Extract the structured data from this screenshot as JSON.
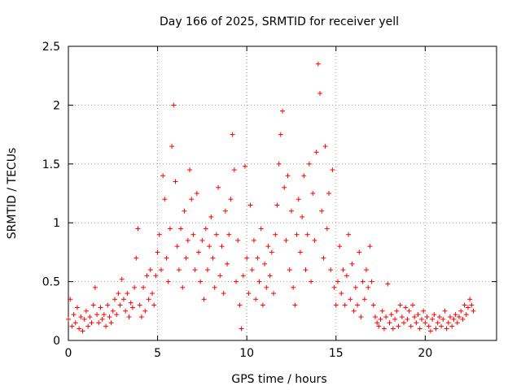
{
  "chart_data": {
    "type": "scatter",
    "title": "Day 166 of 2025, SRMTID for receiver yell",
    "xlabel": "GPS time / hours",
    "ylabel": "SRMTID / TECUs",
    "xlim": [
      0,
      24
    ],
    "ylim": [
      0,
      2.5
    ],
    "xticks": [
      0,
      5,
      10,
      15,
      20
    ],
    "yticks": [
      0,
      0.5,
      1,
      1.5,
      2,
      2.5
    ],
    "ytick_labels": [
      "0",
      "0.5",
      "1",
      "1.5",
      "2",
      "2.5"
    ],
    "grid": true,
    "marker": "+",
    "color": "#ff0000",
    "series": [
      {
        "name": "SRMTID",
        "points": [
          [
            0.0,
            0.18
          ],
          [
            0.1,
            0.35
          ],
          [
            0.2,
            0.12
          ],
          [
            0.3,
            0.22
          ],
          [
            0.4,
            0.15
          ],
          [
            0.5,
            0.28
          ],
          [
            0.6,
            0.1
          ],
          [
            0.7,
            0.2
          ],
          [
            0.8,
            0.08
          ],
          [
            0.9,
            0.18
          ],
          [
            1.0,
            0.25
          ],
          [
            1.1,
            0.12
          ],
          [
            1.2,
            0.2
          ],
          [
            1.3,
            0.15
          ],
          [
            1.4,
            0.3
          ],
          [
            1.5,
            0.45
          ],
          [
            1.6,
            0.22
          ],
          [
            1.7,
            0.15
          ],
          [
            1.8,
            0.28
          ],
          [
            1.9,
            0.18
          ],
          [
            2.0,
            0.22
          ],
          [
            2.1,
            0.12
          ],
          [
            2.2,
            0.3
          ],
          [
            2.3,
            0.2
          ],
          [
            2.4,
            0.15
          ],
          [
            2.5,
            0.25
          ],
          [
            2.6,
            0.35
          ],
          [
            2.7,
            0.22
          ],
          [
            2.8,
            0.4
          ],
          [
            2.9,
            0.3
          ],
          [
            3.0,
            0.52
          ],
          [
            3.1,
            0.35
          ],
          [
            3.2,
            0.25
          ],
          [
            3.3,
            0.4
          ],
          [
            3.4,
            0.2
          ],
          [
            3.5,
            0.32
          ],
          [
            3.6,
            0.28
          ],
          [
            3.7,
            0.45
          ],
          [
            3.8,
            0.7
          ],
          [
            3.9,
            0.95
          ],
          [
            4.0,
            0.3
          ],
          [
            4.1,
            0.2
          ],
          [
            4.2,
            0.45
          ],
          [
            4.3,
            0.25
          ],
          [
            4.4,
            0.55
          ],
          [
            4.5,
            0.35
          ],
          [
            4.6,
            0.6
          ],
          [
            4.7,
            0.4
          ],
          [
            4.8,
            0.3
          ],
          [
            4.9,
            0.55
          ],
          [
            5.0,
            0.75
          ],
          [
            5.1,
            0.9
          ],
          [
            5.2,
            0.6
          ],
          [
            5.3,
            1.4
          ],
          [
            5.4,
            1.2
          ],
          [
            5.5,
            0.7
          ],
          [
            5.6,
            0.5
          ],
          [
            5.7,
            0.95
          ],
          [
            5.8,
            1.65
          ],
          [
            5.9,
            2.0
          ],
          [
            6.0,
            1.35
          ],
          [
            6.1,
            0.8
          ],
          [
            6.2,
            0.6
          ],
          [
            6.3,
            0.95
          ],
          [
            6.4,
            0.45
          ],
          [
            6.5,
            1.1
          ],
          [
            6.6,
            0.7
          ],
          [
            6.7,
            0.85
          ],
          [
            6.8,
            1.45
          ],
          [
            6.9,
            1.2
          ],
          [
            7.0,
            0.9
          ],
          [
            7.1,
            0.6
          ],
          [
            7.2,
            1.25
          ],
          [
            7.3,
            0.75
          ],
          [
            7.4,
            0.5
          ],
          [
            7.5,
            0.85
          ],
          [
            7.6,
            0.35
          ],
          [
            7.7,
            0.95
          ],
          [
            7.8,
            0.6
          ],
          [
            7.9,
            0.8
          ],
          [
            8.0,
            1.05
          ],
          [
            8.1,
            0.7
          ],
          [
            8.2,
            0.45
          ],
          [
            8.3,
            0.9
          ],
          [
            8.4,
            1.3
          ],
          [
            8.5,
            0.55
          ],
          [
            8.6,
            0.8
          ],
          [
            8.7,
            0.4
          ],
          [
            8.8,
            1.1
          ],
          [
            8.9,
            0.65
          ],
          [
            9.0,
            0.9
          ],
          [
            9.1,
            1.2
          ],
          [
            9.2,
            1.75
          ],
          [
            9.3,
            1.45
          ],
          [
            9.4,
            0.5
          ],
          [
            9.5,
            0.85
          ],
          [
            9.6,
            0.3
          ],
          [
            9.7,
            0.1
          ],
          [
            9.8,
            0.55
          ],
          [
            9.9,
            1.48
          ],
          [
            10.0,
            0.7
          ],
          [
            10.1,
            0.4
          ],
          [
            10.2,
            1.15
          ],
          [
            10.3,
            0.6
          ],
          [
            10.4,
            0.85
          ],
          [
            10.5,
            0.35
          ],
          [
            10.6,
            0.7
          ],
          [
            10.7,
            0.5
          ],
          [
            10.8,
            0.95
          ],
          [
            10.9,
            0.3
          ],
          [
            11.0,
            0.65
          ],
          [
            11.1,
            0.45
          ],
          [
            11.2,
            0.8
          ],
          [
            11.3,
            0.55
          ],
          [
            11.4,
            0.75
          ],
          [
            11.5,
            0.4
          ],
          [
            11.6,
            0.9
          ],
          [
            11.7,
            1.15
          ],
          [
            11.8,
            1.5
          ],
          [
            11.9,
            1.75
          ],
          [
            12.0,
            1.95
          ],
          [
            12.1,
            1.3
          ],
          [
            12.2,
            0.85
          ],
          [
            12.3,
            1.4
          ],
          [
            12.4,
            0.6
          ],
          [
            12.5,
            1.1
          ],
          [
            12.6,
            0.45
          ],
          [
            12.7,
            0.3
          ],
          [
            12.8,
            0.9
          ],
          [
            12.9,
            1.2
          ],
          [
            13.0,
            0.75
          ],
          [
            13.1,
            1.05
          ],
          [
            13.2,
            1.4
          ],
          [
            13.3,
            0.6
          ],
          [
            13.4,
            0.9
          ],
          [
            13.5,
            1.5
          ],
          [
            13.6,
            0.5
          ],
          [
            13.7,
            1.25
          ],
          [
            13.8,
            0.85
          ],
          [
            13.9,
            1.6
          ],
          [
            14.0,
            2.35
          ],
          [
            14.1,
            2.1
          ],
          [
            14.2,
            1.1
          ],
          [
            14.3,
            0.7
          ],
          [
            14.4,
            1.65
          ],
          [
            14.5,
            0.95
          ],
          [
            14.6,
            1.25
          ],
          [
            14.7,
            0.6
          ],
          [
            14.8,
            1.45
          ],
          [
            14.9,
            0.45
          ],
          [
            15.0,
            0.3
          ],
          [
            15.1,
            0.5
          ],
          [
            15.2,
            0.8
          ],
          [
            15.3,
            0.4
          ],
          [
            15.4,
            0.6
          ],
          [
            15.5,
            0.3
          ],
          [
            15.6,
            0.55
          ],
          [
            15.7,
            0.9
          ],
          [
            15.8,
            0.35
          ],
          [
            15.9,
            0.65
          ],
          [
            16.0,
            0.25
          ],
          [
            16.1,
            0.45
          ],
          [
            16.2,
            0.3
          ],
          [
            16.3,
            0.75
          ],
          [
            16.4,
            0.2
          ],
          [
            16.5,
            0.5
          ],
          [
            16.6,
            0.35
          ],
          [
            16.7,
            0.6
          ],
          [
            16.8,
            0.45
          ],
          [
            16.9,
            0.8
          ],
          [
            17.0,
            0.5
          ],
          [
            17.1,
            0.3
          ],
          [
            17.2,
            0.2
          ],
          [
            17.3,
            0.15
          ],
          [
            17.4,
            0.12
          ],
          [
            17.5,
            0.18
          ],
          [
            17.6,
            0.25
          ],
          [
            17.7,
            0.1
          ],
          [
            17.8,
            0.2
          ],
          [
            17.9,
            0.48
          ],
          [
            18.0,
            0.15
          ],
          [
            18.1,
            0.22
          ],
          [
            18.2,
            0.1
          ],
          [
            18.3,
            0.18
          ],
          [
            18.4,
            0.25
          ],
          [
            18.5,
            0.12
          ],
          [
            18.6,
            0.3
          ],
          [
            18.7,
            0.2
          ],
          [
            18.8,
            0.15
          ],
          [
            18.9,
            0.28
          ],
          [
            19.0,
            0.18
          ],
          [
            19.1,
            0.25
          ],
          [
            19.2,
            0.12
          ],
          [
            19.3,
            0.3
          ],
          [
            19.4,
            0.2
          ],
          [
            19.5,
            0.15
          ],
          [
            19.6,
            0.22
          ],
          [
            19.7,
            0.1
          ],
          [
            19.8,
            0.18
          ],
          [
            19.9,
            0.25
          ],
          [
            20.0,
            0.15
          ],
          [
            20.1,
            0.2
          ],
          [
            20.2,
            0.12
          ],
          [
            20.3,
            0.08
          ],
          [
            20.4,
            0.18
          ],
          [
            20.5,
            0.22
          ],
          [
            20.6,
            0.1
          ],
          [
            20.7,
            0.15
          ],
          [
            20.8,
            0.2
          ],
          [
            20.9,
            0.12
          ],
          [
            21.0,
            0.18
          ],
          [
            21.1,
            0.25
          ],
          [
            21.2,
            0.1
          ],
          [
            21.3,
            0.15
          ],
          [
            21.4,
            0.2
          ],
          [
            21.5,
            0.12
          ],
          [
            21.6,
            0.18
          ],
          [
            21.7,
            0.22
          ],
          [
            21.8,
            0.15
          ],
          [
            21.9,
            0.2
          ],
          [
            22.0,
            0.25
          ],
          [
            22.1,
            0.18
          ],
          [
            22.2,
            0.3
          ],
          [
            22.3,
            0.22
          ],
          [
            22.4,
            0.28
          ],
          [
            22.5,
            0.35
          ],
          [
            22.6,
            0.3
          ],
          [
            22.7,
            0.25
          ]
        ]
      }
    ]
  }
}
